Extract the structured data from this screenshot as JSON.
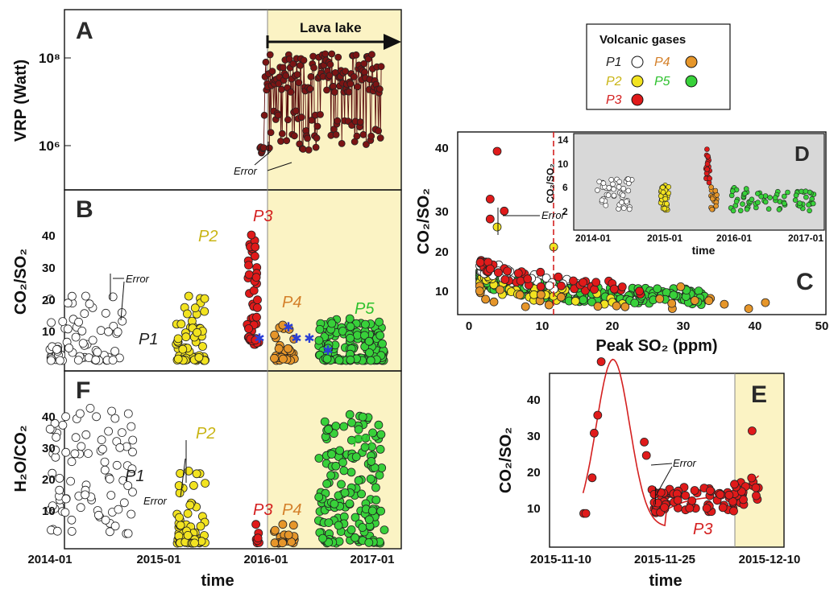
{
  "colors": {
    "lava": "#7b1414",
    "P1": "#ffffff",
    "P2": "#f2e320",
    "P3": "#e01a1a",
    "P4": "#e6962a",
    "P5": "#38d13a",
    "lake_shade": "#fbf3c4",
    "label_P1": "#222222",
    "label_P2": "#c9b414",
    "label_P3": "#d42020",
    "label_P4": "#d4802a",
    "label_P5": "#2ec12e",
    "vline": "#d42020",
    "fit": "#d42020",
    "cross": "#2a3fd6"
  },
  "time_axis": {
    "ticks": [
      "2014-01",
      "2015-01",
      "2016-01",
      "2017-01"
    ],
    "label": "time"
  },
  "lava_lake_label": "Lava lake",
  "error_label": "Error",
  "legend": {
    "title": "Volcanic gases",
    "items": [
      {
        "label": "P1",
        "color_key": "P1"
      },
      {
        "label": "P4",
        "color_key": "P4"
      },
      {
        "label": "P2",
        "color_key": "P2"
      },
      {
        "label": "P5",
        "color_key": "P5"
      },
      {
        "label": "P3",
        "color_key": "P3"
      }
    ]
  },
  "panel_letters": {
    "A": "A",
    "B": "B",
    "F": "F",
    "C": "C",
    "D": "D",
    "E": "E"
  },
  "chart_data": [
    {
      "id": "A",
      "type": "line",
      "ylabel": "VRP (Watt)",
      "yscale": "log",
      "y_ticks": [
        "10⁶",
        "10⁸"
      ],
      "note": "dense time series of VRP from 2016-01 to 2017-01 during lava lake period",
      "series": [
        {
          "name": "VRP",
          "x_range": [
            "2015-12-15",
            "2017-01-31"
          ],
          "y_range": [
            500000.0,
            130000000.0
          ]
        }
      ]
    },
    {
      "id": "B",
      "type": "scatter",
      "ylabel": "CO₂/SO₂",
      "ylim": [
        0,
        45
      ],
      "y_ticks": [
        "10",
        "20",
        "30",
        "40"
      ],
      "series": [
        {
          "name": "P1",
          "x_range": [
            "2014-01",
            "2014-09"
          ],
          "y_range": [
            2,
            22
          ]
        },
        {
          "name": "P2",
          "x_range": [
            "2015-03",
            "2015-06"
          ],
          "y_range": [
            2,
            22
          ]
        },
        {
          "name": "P3",
          "x_range": [
            "2015-11",
            "2015-12"
          ],
          "y_range": [
            7,
            41
          ]
        },
        {
          "name": "P4",
          "x_range": [
            "2016-02",
            "2016-04"
          ],
          "y_range": [
            2,
            13
          ]
        },
        {
          "name": "P5",
          "x_range": [
            "2016-07",
            "2017-02"
          ],
          "y_range": [
            2,
            15
          ]
        }
      ]
    },
    {
      "id": "F",
      "type": "scatter",
      "ylabel": "H₂O/CO₂",
      "ylim": [
        0,
        45
      ],
      "y_ticks": [
        "10",
        "20",
        "30",
        "40"
      ],
      "series": [
        {
          "name": "P1",
          "x_range": [
            "2014-01",
            "2014-10"
          ],
          "y_range": [
            4,
            44
          ]
        },
        {
          "name": "P2",
          "x_range": [
            "2015-03",
            "2015-06"
          ],
          "y_range": [
            1,
            24
          ]
        },
        {
          "name": "P3",
          "x_range": [
            "2015-12",
            "2015-12"
          ],
          "y_range": [
            1,
            7
          ]
        },
        {
          "name": "P4",
          "x_range": [
            "2016-02",
            "2016-04"
          ],
          "y_range": [
            1,
            7
          ]
        },
        {
          "name": "P5",
          "x_range": [
            "2016-07",
            "2017-02"
          ],
          "y_range": [
            1,
            42
          ]
        }
      ]
    },
    {
      "id": "C",
      "type": "scatter",
      "xlabel": "Peak SO₂ (ppm)",
      "ylabel": "CO₂/SO₂",
      "xlim": [
        0,
        50
      ],
      "ylim": [
        0,
        45
      ],
      "x_ticks": [
        "0",
        "10",
        "20",
        "30",
        "40",
        "50"
      ],
      "y_ticks": [
        "10",
        "20",
        "30",
        "40"
      ],
      "vline_x": 14.5
    },
    {
      "id": "D",
      "type": "scatter",
      "xlabel": "time",
      "ylabel": "CO₂/SO₂",
      "ylim": [
        0,
        15
      ],
      "x_ticks": [
        "2014-01",
        "2015-01",
        "2016-01",
        "2017-01"
      ],
      "y_ticks": [
        "2",
        "6",
        "10",
        "14"
      ]
    },
    {
      "id": "E",
      "type": "scatter",
      "xlabel": "time",
      "ylabel": "CO₂/SO₂",
      "ylim": [
        0,
        45
      ],
      "x_ticks": [
        "2015-11-10",
        "2015-11-25",
        "2015-12-10"
      ],
      "y_ticks": [
        "10",
        "20",
        "30",
        "40"
      ],
      "series": [
        {
          "name": "P3",
          "x_range": [
            "2015-11-13",
            "2015-12-07"
          ],
          "y_range": [
            6,
            41
          ]
        }
      ]
    }
  ]
}
